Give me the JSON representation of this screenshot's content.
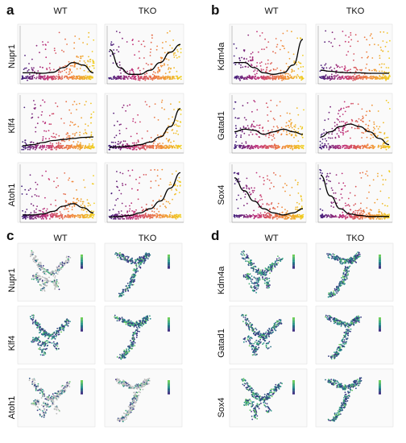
{
  "figure": {
    "panels": {
      "a": {
        "letter": "a",
        "columns": [
          "WT",
          "TKO"
        ],
        "rows": [
          "Nupr1",
          "Klf4",
          "Atoh1"
        ]
      },
      "b": {
        "letter": "b",
        "columns": [
          "WT",
          "TKO"
        ],
        "rows": [
          "Kdm4a",
          "Gatad1",
          "Sox4"
        ]
      },
      "c": {
        "letter": "c",
        "columns": [
          "WT",
          "TKO"
        ],
        "rows": [
          "Nupr1",
          "Klf4",
          "Atoh1"
        ]
      },
      "d": {
        "letter": "d",
        "columns": [
          "WT",
          "TKO"
        ],
        "rows": [
          "Kdm4a",
          "Gatad1",
          "Sox4"
        ]
      }
    }
  },
  "colors": {
    "pseudotime_low": "#3b1c7a",
    "pseudotime_mid": "#c0307a",
    "pseudotime_high": "#f0d020",
    "trend": "#000000",
    "umap_low": "#3b2a7f",
    "umap_mid": "#21918c",
    "umap_high": "#6ece58",
    "umap_na": "#bdbdbd"
  },
  "chart_data": [
    {
      "type": "scatter",
      "panel": "a",
      "gene": "Nupr1",
      "condition": "WT",
      "trend_y": [
        0.15,
        0.15,
        0.14,
        0.16,
        0.25,
        0.35,
        0.3,
        0.15
      ]
    },
    {
      "type": "scatter",
      "panel": "a",
      "gene": "Nupr1",
      "condition": "TKO",
      "trend_y": [
        0.6,
        0.25,
        0.12,
        0.12,
        0.2,
        0.35,
        0.55,
        0.7
      ]
    },
    {
      "type": "scatter",
      "panel": "a",
      "gene": "Klf4",
      "condition": "WT",
      "trend_y": [
        0.08,
        0.1,
        0.14,
        0.18,
        0.2,
        0.22,
        0.24,
        0.25
      ]
    },
    {
      "type": "scatter",
      "panel": "a",
      "gene": "Klf4",
      "condition": "TKO",
      "trend_y": [
        0.05,
        0.06,
        0.07,
        0.1,
        0.15,
        0.25,
        0.45,
        0.8
      ]
    },
    {
      "type": "scatter",
      "panel": "a",
      "gene": "Atoh1",
      "condition": "WT",
      "trend_y": [
        0.08,
        0.08,
        0.1,
        0.15,
        0.25,
        0.3,
        0.22,
        0.12
      ]
    },
    {
      "type": "scatter",
      "panel": "a",
      "gene": "Atoh1",
      "condition": "TKO",
      "trend_y": [
        0.04,
        0.05,
        0.07,
        0.12,
        0.2,
        0.35,
        0.6,
        0.9
      ]
    },
    {
      "type": "scatter",
      "panel": "b",
      "gene": "Kdm4a",
      "condition": "WT",
      "trend_y": [
        0.35,
        0.35,
        0.25,
        0.15,
        0.12,
        0.15,
        0.3,
        0.8
      ]
    },
    {
      "type": "scatter",
      "panel": "b",
      "gene": "Kdm4a",
      "condition": "TKO",
      "trend_y": [
        0.2,
        0.18,
        0.16,
        0.15,
        0.15,
        0.14,
        0.14,
        0.14
      ]
    },
    {
      "type": "scatter",
      "panel": "b",
      "gene": "Gatad1",
      "condition": "WT",
      "trend_y": [
        0.35,
        0.4,
        0.38,
        0.3,
        0.35,
        0.4,
        0.35,
        0.3
      ]
    },
    {
      "type": "scatter",
      "panel": "b",
      "gene": "Gatad1",
      "condition": "TKO",
      "trend_y": [
        0.25,
        0.35,
        0.45,
        0.5,
        0.45,
        0.35,
        0.22,
        0.1
      ]
    },
    {
      "type": "scatter",
      "panel": "b",
      "gene": "Sox4",
      "condition": "WT",
      "trend_y": [
        0.8,
        0.55,
        0.35,
        0.2,
        0.12,
        0.08,
        0.12,
        0.2
      ]
    },
    {
      "type": "scatter",
      "panel": "b",
      "gene": "Sox4",
      "condition": "TKO",
      "trend_y": [
        0.85,
        0.45,
        0.2,
        0.1,
        0.07,
        0.05,
        0.05,
        0.05
      ]
    },
    {
      "type": "scatter",
      "panel": "c",
      "gene": "Nupr1",
      "condition": "WT"
    },
    {
      "type": "scatter",
      "panel": "c",
      "gene": "Nupr1",
      "condition": "TKO"
    },
    {
      "type": "scatter",
      "panel": "c",
      "gene": "Klf4",
      "condition": "WT"
    },
    {
      "type": "scatter",
      "panel": "c",
      "gene": "Klf4",
      "condition": "TKO"
    },
    {
      "type": "scatter",
      "panel": "c",
      "gene": "Atoh1",
      "condition": "WT"
    },
    {
      "type": "scatter",
      "panel": "c",
      "gene": "Atoh1",
      "condition": "TKO"
    },
    {
      "type": "scatter",
      "panel": "d",
      "gene": "Kdm4a",
      "condition": "WT"
    },
    {
      "type": "scatter",
      "panel": "d",
      "gene": "Kdm4a",
      "condition": "TKO"
    },
    {
      "type": "scatter",
      "panel": "d",
      "gene": "Gatad1",
      "condition": "WT"
    },
    {
      "type": "scatter",
      "panel": "d",
      "gene": "Gatad1",
      "condition": "TKO"
    },
    {
      "type": "scatter",
      "panel": "d",
      "gene": "Sox4",
      "condition": "WT"
    },
    {
      "type": "scatter",
      "panel": "d",
      "gene": "Sox4",
      "condition": "TKO"
    }
  ]
}
